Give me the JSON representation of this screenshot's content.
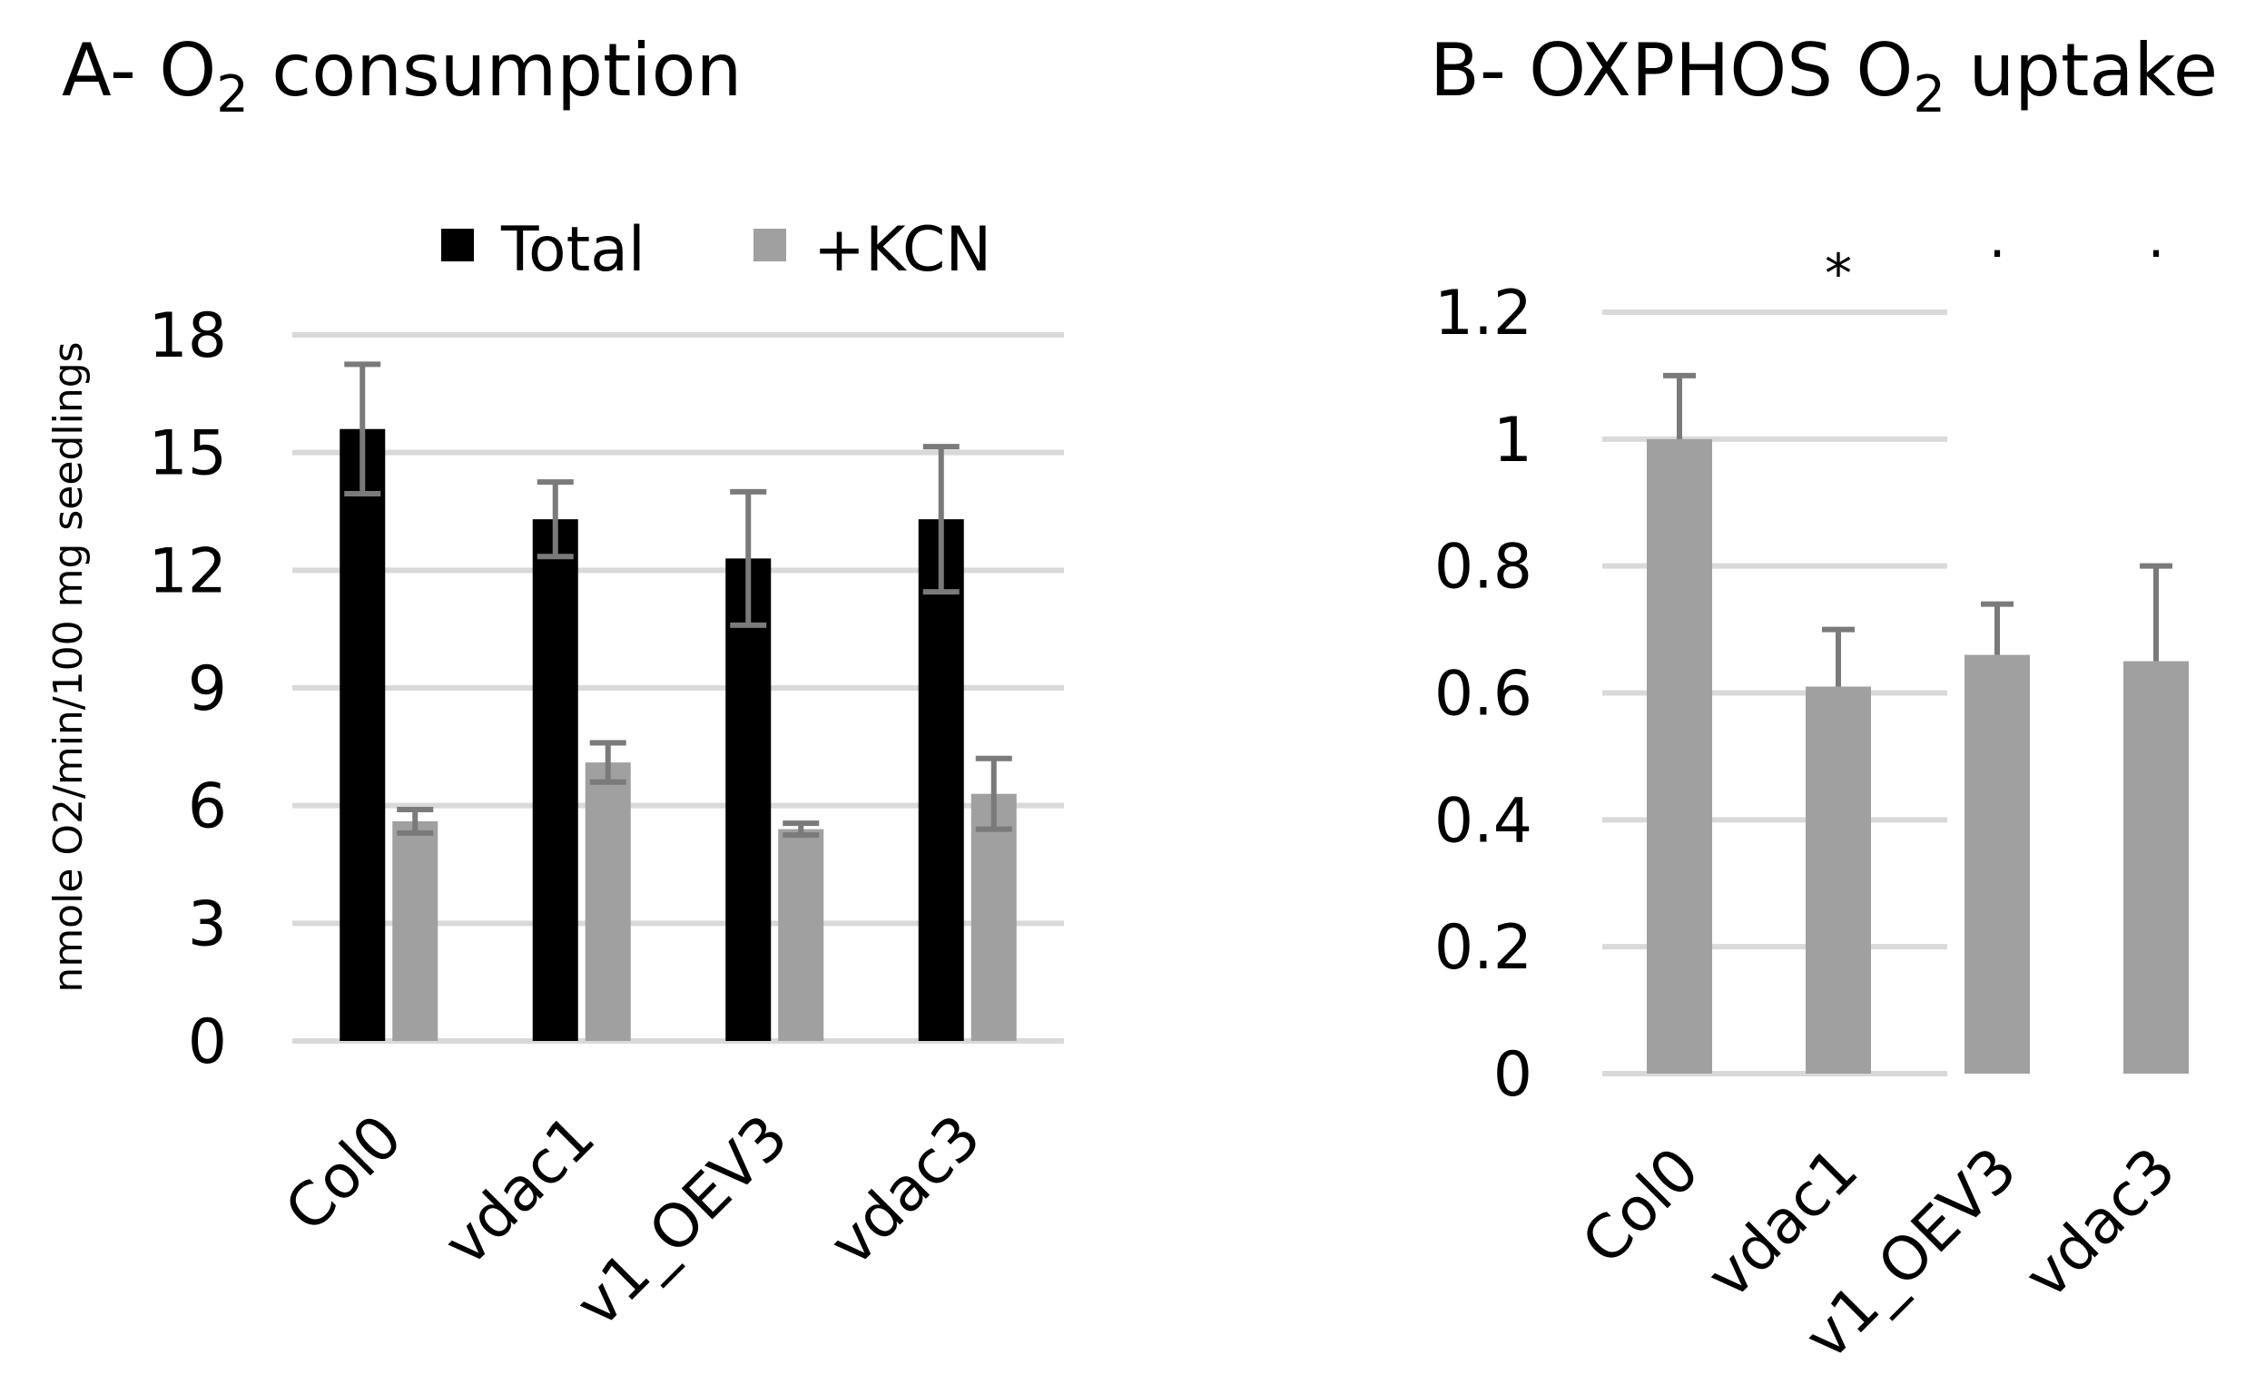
{
  "chart_data": [
    {
      "type": "bar",
      "title": {
        "prefix": "A- O",
        "subscript": "2",
        "suffix": " consumption"
      },
      "ylabel": "nmole O2/min/100 mg seedlings",
      "xlabel": "",
      "ylim": [
        0,
        18
      ],
      "yticks": [
        "0",
        "3",
        "6",
        "9",
        "12",
        "15",
        "18"
      ],
      "categories": [
        "Col0",
        "vdac1",
        "v1_OEV3",
        "vdac3"
      ],
      "legend_position": "top",
      "series": [
        {
          "name": "Total",
          "color": "#000000",
          "values": [
            15.6,
            13.3,
            12.3,
            13.3
          ],
          "errors": [
            1.65,
            0.95,
            1.7,
            1.85
          ]
        },
        {
          "name": "+KCN",
          "color": "#a0a0a0",
          "values": [
            5.6,
            7.1,
            5.4,
            6.3
          ],
          "errors": [
            0.3,
            0.5,
            0.15,
            0.9
          ]
        }
      ]
    },
    {
      "type": "bar",
      "title": {
        "prefix": "B- OXPHOS O",
        "subscript": "2",
        "suffix": " uptake"
      },
      "ylabel": "",
      "xlabel": "",
      "ylim": [
        0,
        1.2
      ],
      "yticks": [
        "0",
        "0.2",
        "0.4",
        "0.6",
        "0.8",
        "1",
        "1.2"
      ],
      "categories": [
        "Col0",
        "vdac1",
        "v1_OEV3",
        "vdac3"
      ],
      "series": [
        {
          "name": "OXPHOS",
          "color": "#a0a0a0",
          "values": [
            1.0,
            0.61,
            0.66,
            0.65
          ],
          "errors": [
            0.1,
            0.09,
            0.08,
            0.15
          ]
        }
      ],
      "significance": [
        "",
        "*",
        "·",
        "·"
      ]
    }
  ]
}
